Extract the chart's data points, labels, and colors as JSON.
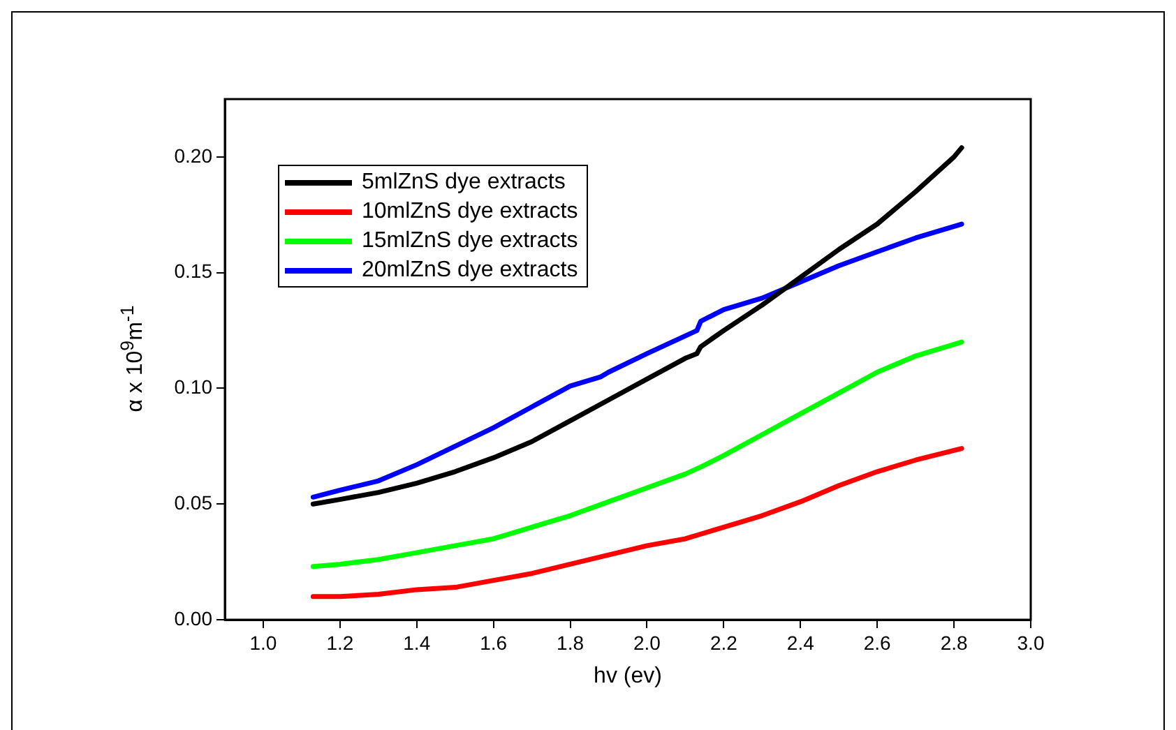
{
  "chart_data": {
    "type": "line",
    "xlabel": "hv (ev)",
    "ylabel": "α x 10$^{9}$m$^{-1}$",
    "xlim": [
      0.9,
      3.0
    ],
    "xticks": [
      {
        "value": 1.0,
        "label": "1.0"
      },
      {
        "value": 1.2,
        "label": "1.2"
      },
      {
        "value": 1.4,
        "label": "1.4"
      },
      {
        "value": 1.6,
        "label": "1.6"
      },
      {
        "value": 1.8,
        "label": "1.8"
      },
      {
        "value": 2.0,
        "label": "2.0"
      },
      {
        "value": 2.2,
        "label": "2.2"
      },
      {
        "value": 2.4,
        "label": "2.4"
      },
      {
        "value": 2.6,
        "label": "2.6"
      },
      {
        "value": 2.8,
        "label": "2.8"
      },
      {
        "value": 3.0,
        "label": "3.0"
      }
    ],
    "ylim": [
      0,
      0.225
    ],
    "yticks": [
      {
        "value": 0,
        "label": "0.00"
      },
      {
        "value": 0.05,
        "label": "0.05"
      },
      {
        "value": 0.1,
        "label": "0.10"
      },
      {
        "value": 0.15,
        "label": "0.15"
      },
      {
        "value": 0.2,
        "label": "0.20"
      }
    ],
    "grid": false,
    "legend": "top left",
    "marker": "none",
    "line_style": "solid",
    "series": [
      {
        "name": "5mlZnS dye extracts",
        "color": "#000000",
        "x": [
          1.13,
          1.2,
          1.3,
          1.4,
          1.5,
          1.6,
          1.7,
          1.8,
          1.9,
          2.0,
          2.1,
          2.13,
          2.14,
          2.2,
          2.3,
          2.4,
          2.5,
          2.6,
          2.7,
          2.8,
          2.82
        ],
        "values": [
          0.05,
          0.052,
          0.055,
          0.059,
          0.064,
          0.07,
          0.077,
          0.086,
          0.095,
          0.104,
          0.113,
          0.115,
          0.118,
          0.125,
          0.136,
          0.148,
          0.16,
          0.171,
          0.185,
          0.2,
          0.204
        ]
      },
      {
        "name": "10mlZnS dye extracts",
        "color": "#ff0000",
        "x": [
          1.13,
          1.2,
          1.3,
          1.4,
          1.5,
          1.6,
          1.7,
          1.8,
          1.9,
          2.0,
          2.1,
          2.2,
          2.3,
          2.4,
          2.5,
          2.6,
          2.7,
          2.82
        ],
        "values": [
          0.01,
          0.01,
          0.011,
          0.013,
          0.014,
          0.017,
          0.02,
          0.024,
          0.028,
          0.032,
          0.035,
          0.04,
          0.045,
          0.051,
          0.058,
          0.064,
          0.069,
          0.074
        ]
      },
      {
        "name": "15mlZnS dye extracts",
        "color": "#00ff00",
        "x": [
          1.13,
          1.2,
          1.3,
          1.4,
          1.5,
          1.6,
          1.7,
          1.8,
          1.9,
          2.0,
          2.1,
          2.14,
          2.2,
          2.3,
          2.4,
          2.5,
          2.6,
          2.7,
          2.82
        ],
        "values": [
          0.023,
          0.024,
          0.026,
          0.029,
          0.032,
          0.035,
          0.04,
          0.045,
          0.051,
          0.057,
          0.063,
          0.066,
          0.071,
          0.08,
          0.089,
          0.098,
          0.107,
          0.114,
          0.12
        ]
      },
      {
        "name": "20mlZnS dye extracts",
        "color": "#0000ff",
        "x": [
          1.13,
          1.2,
          1.3,
          1.4,
          1.5,
          1.6,
          1.7,
          1.8,
          1.88,
          1.9,
          2.0,
          2.13,
          2.14,
          2.2,
          2.3,
          2.4,
          2.5,
          2.6,
          2.7,
          2.82
        ],
        "values": [
          0.053,
          0.056,
          0.06,
          0.067,
          0.075,
          0.083,
          0.092,
          0.101,
          0.105,
          0.107,
          0.115,
          0.125,
          0.129,
          0.134,
          0.139,
          0.146,
          0.153,
          0.159,
          0.165,
          0.171
        ]
      }
    ]
  }
}
